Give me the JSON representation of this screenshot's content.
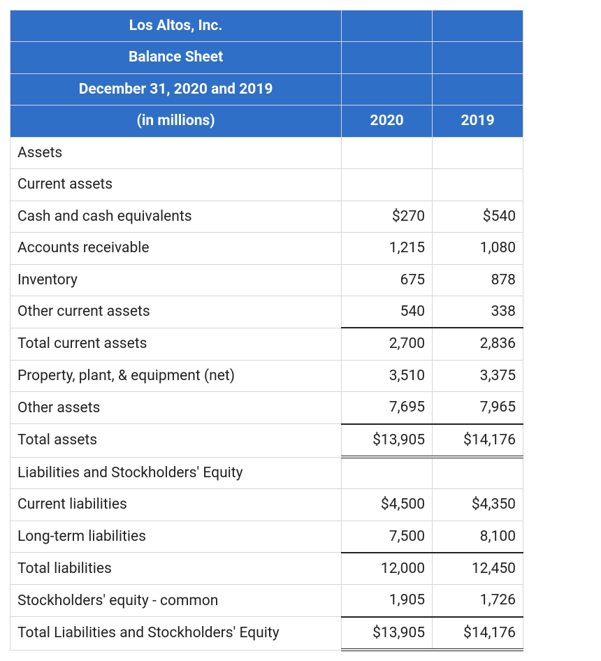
{
  "colors": {
    "header_bg": "#2f6fc7",
    "header_text": "#ffffff",
    "body_text": "#222222",
    "grid": "#d6d6d6",
    "rule": "#222222",
    "page_bg": "#ffffff"
  },
  "typography": {
    "base_fontsize_pt": 16,
    "header_weight": 700,
    "body_weight": 400
  },
  "header": {
    "company": "Los Altos, Inc.",
    "title": "Balance Sheet",
    "dateline": "December 31, 2020 and 2019",
    "unit_note": "(in millions)",
    "col1": "2020",
    "col2": "2019"
  },
  "columns": [
    "",
    "2020",
    "2019"
  ],
  "rows": [
    {
      "label": "Assets",
      "v2020": "",
      "v2019": "",
      "style": "plain"
    },
    {
      "label": "Current assets",
      "v2020": "",
      "v2019": "",
      "style": "plain"
    },
    {
      "label": "Cash and cash equivalents",
      "v2020": "$270",
      "v2019": "$540",
      "style": "plain"
    },
    {
      "label": "Accounts receivable",
      "v2020": "1,215",
      "v2019": "1,080",
      "style": "plain"
    },
    {
      "label": "Inventory",
      "v2020": "675",
      "v2019": "878",
      "style": "plain"
    },
    {
      "label": "Other current assets",
      "v2020": "540",
      "v2019": "338",
      "style": "plain"
    },
    {
      "label": "Total current assets",
      "v2020": "2,700",
      "v2019": "2,836",
      "style": "subtotal"
    },
    {
      "label": "Property, plant, & equipment (net)",
      "v2020": "3,510",
      "v2019": "3,375",
      "style": "plain"
    },
    {
      "label": "Other assets",
      "v2020": "7,695",
      "v2019": "7,965",
      "style": "plain"
    },
    {
      "label": "Total assets",
      "v2020": "$13,905",
      "v2019": "$14,176",
      "style": "grand"
    },
    {
      "label": "Liabilities and Stockholders' Equity",
      "v2020": "",
      "v2019": "",
      "style": "plain"
    },
    {
      "label": "Current liabilities",
      "v2020": "$4,500",
      "v2019": "$4,350",
      "style": "plain"
    },
    {
      "label": "Long-term liabilities",
      "v2020": "7,500",
      "v2019": "8,100",
      "style": "plain"
    },
    {
      "label": "Total liabilities",
      "v2020": "12,000",
      "v2019": "12,450",
      "style": "subtotal"
    },
    {
      "label": "Stockholders' equity - common",
      "v2020": "1,905",
      "v2019": "1,726",
      "style": "plain"
    },
    {
      "label": "Total Liabilities and Stockholders' Equity",
      "v2020": "$13,905",
      "v2019": "$14,176",
      "style": "grand"
    }
  ]
}
